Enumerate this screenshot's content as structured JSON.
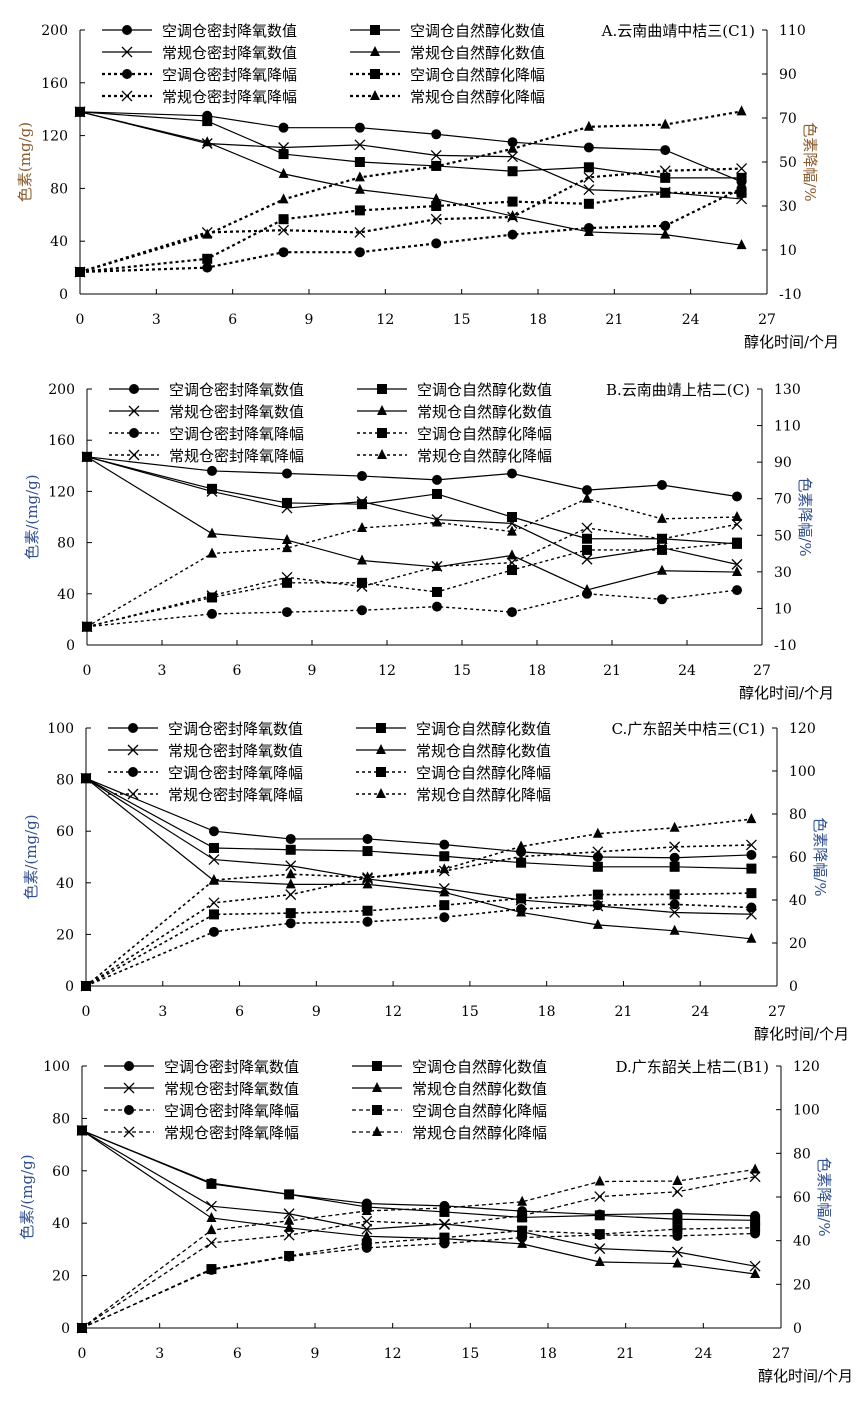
{
  "colors": {
    "line": "#000000",
    "label_a": "#8B5A2B",
    "label_other": "#2F4F8F"
  },
  "chart_data": [
    {
      "type": "line",
      "title": "A.云南曲靖中桔三(C1)",
      "xlabel": "醇化时间/个月",
      "ylabel": "色素(mg/g)",
      "y2label": "色素降幅/%",
      "xlim": [
        0,
        27
      ],
      "xstep": 3,
      "ylim": [
        0,
        200
      ],
      "ystep": 40,
      "y2lim": [
        -10,
        110
      ],
      "y2step": 20,
      "legend": "top-left",
      "x": [
        0,
        5,
        8,
        11,
        14,
        17,
        20,
        23,
        26
      ],
      "series": [
        {
          "name": "空调仓密封降氧数值",
          "axis": "left",
          "marker": "circle",
          "style": "solid",
          "values": [
            138,
            135,
            126,
            126,
            121,
            115,
            111,
            109,
            85
          ]
        },
        {
          "name": "空调仓自然醇化数值",
          "axis": "left",
          "marker": "square",
          "style": "solid",
          "values": [
            138,
            131,
            106,
            100,
            97,
            93,
            96,
            88,
            88
          ]
        },
        {
          "name": "常规仓密封降氧数值",
          "axis": "left",
          "marker": "x",
          "style": "solid",
          "values": [
            138,
            114,
            111,
            113,
            105,
            104,
            79,
            77,
            72
          ]
        },
        {
          "name": "常规仓自然醇化数值",
          "axis": "left",
          "marker": "triangle",
          "style": "solid",
          "values": [
            138,
            115,
            91,
            79,
            72,
            59,
            47,
            45,
            37
          ]
        },
        {
          "name": "空调仓密封降氧降幅",
          "axis": "right",
          "marker": "circle",
          "style": "dotted",
          "values": [
            0,
            2,
            9,
            9,
            13,
            17,
            20,
            21,
            38
          ]
        },
        {
          "name": "空调仓自然醇化降幅",
          "axis": "right",
          "marker": "square",
          "style": "dotted",
          "values": [
            0,
            6,
            24,
            28,
            30,
            32,
            31,
            36,
            36
          ]
        },
        {
          "name": "常规仓密封降氧降幅",
          "axis": "right",
          "marker": "x",
          "style": "dotted",
          "values": [
            0,
            18,
            19,
            18,
            24,
            25,
            43,
            46,
            47
          ]
        },
        {
          "name": "常规仓自然醇化降幅",
          "axis": "right",
          "marker": "triangle",
          "style": "dotted",
          "values": [
            0,
            17,
            33,
            43,
            48,
            56,
            66,
            67,
            73
          ]
        }
      ]
    },
    {
      "type": "line",
      "title": "B.云南曲靖上桔二(C)",
      "xlabel": "醇化时间/个月",
      "ylabel": "色素/(mg/g)",
      "y2label": "色素降幅/%",
      "xlim": [
        0,
        27
      ],
      "xstep": 3,
      "ylim": [
        0,
        200
      ],
      "ystep": 40,
      "y2lim": [
        -10,
        130
      ],
      "y2step": 20,
      "legend": "top-left",
      "x": [
        0,
        5,
        8,
        11,
        14,
        17,
        20,
        23,
        26
      ],
      "series": [
        {
          "name": "空调仓密封降氧数值",
          "axis": "left",
          "marker": "circle",
          "style": "solid",
          "values": [
            147,
            136,
            134,
            132,
            129,
            134,
            121,
            125,
            116
          ]
        },
        {
          "name": "空调仓自然醇化数值",
          "axis": "left",
          "marker": "square",
          "style": "solid",
          "values": [
            147,
            122,
            111,
            110,
            118,
            100,
            83,
            83,
            79
          ]
        },
        {
          "name": "常规仓密封降氧数值",
          "axis": "left",
          "marker": "x",
          "style": "solid",
          "values": [
            147,
            120,
            107,
            112,
            98,
            95,
            67,
            76,
            63
          ]
        },
        {
          "name": "常规仓自然醇化数值",
          "axis": "left",
          "marker": "triangle",
          "style": "solid",
          "values": [
            147,
            87,
            82,
            66,
            61,
            70,
            43,
            58,
            57
          ]
        },
        {
          "name": "空调仓密封降氧降幅",
          "axis": "right",
          "marker": "circle",
          "style": "dotted",
          "values": [
            0,
            7,
            8,
            9,
            11,
            8,
            18,
            15,
            20
          ]
        },
        {
          "name": "空调仓自然醇化降幅",
          "axis": "right",
          "marker": "square",
          "style": "dotted",
          "values": [
            0,
            16,
            24,
            24,
            19,
            31,
            42,
            42,
            46
          ]
        },
        {
          "name": "常规仓密封降氧降幅",
          "axis": "right",
          "marker": "x",
          "style": "dotted",
          "values": [
            0,
            17,
            27,
            22,
            33,
            35,
            54,
            48,
            56
          ]
        },
        {
          "name": "常规仓自然醇化降幅",
          "axis": "right",
          "marker": "triangle",
          "style": "dotted",
          "values": [
            0,
            40,
            43,
            54,
            57,
            52,
            70,
            59,
            60
          ]
        }
      ]
    },
    {
      "type": "line",
      "title": "C.广东韶关中桔三(C1)",
      "xlabel": "醇化时间/个月",
      "ylabel": "色素/(mg/g)",
      "y2label": "色素降幅/%",
      "xlim": [
        0,
        27
      ],
      "xstep": 3,
      "ylim": [
        0,
        100
      ],
      "ystep": 20,
      "y2lim": [
        0,
        120
      ],
      "y2step": 20,
      "legend": "top-left",
      "x": [
        0,
        5,
        8,
        11,
        14,
        17,
        20,
        23,
        26
      ],
      "series": [
        {
          "name": "空调仓密封降氧数值",
          "axis": "left",
          "marker": "circle",
          "style": "solid",
          "values": [
            80.5,
            60,
            57,
            57,
            54.8,
            52,
            50,
            49.7,
            50.8
          ]
        },
        {
          "name": "空调仓自然醇化数值",
          "axis": "left",
          "marker": "square",
          "style": "solid",
          "values": [
            80.5,
            53.5,
            52.8,
            52.3,
            50.3,
            47.8,
            46.2,
            46.2,
            45.5
          ]
        },
        {
          "name": "常规仓密封降氧数值",
          "axis": "left",
          "marker": "x",
          "style": "solid",
          "values": [
            80.5,
            49,
            46.6,
            41.5,
            37.8,
            33.3,
            31,
            28.5,
            27.8
          ]
        },
        {
          "name": "常规仓自然醇化数值",
          "axis": "left",
          "marker": "triangle",
          "style": "solid",
          "values": [
            80.5,
            40.8,
            39.4,
            39.4,
            36.3,
            28.5,
            23.7,
            21.4,
            18.3
          ]
        },
        {
          "name": "空调仓密封降氧降幅",
          "axis": "right",
          "marker": "circle",
          "style": "dotted",
          "values": [
            0,
            25.2,
            29.2,
            29.9,
            32,
            35.8,
            37.6,
            38,
            36.5
          ]
        },
        {
          "name": "空调仓自然醇化降幅",
          "axis": "right",
          "marker": "square",
          "style": "dotted",
          "values": [
            0,
            33.3,
            33.9,
            35,
            37.6,
            40.7,
            42.5,
            42.6,
            43.2
          ]
        },
        {
          "name": "常规仓密封降氧降幅",
          "axis": "right",
          "marker": "x",
          "style": "dotted",
          "values": [
            0,
            38.7,
            42.5,
            50.4,
            53.5,
            60.2,
            62.4,
            64.7,
            65.6
          ]
        },
        {
          "name": "常规仓自然醇化降幅",
          "axis": "right",
          "marker": "triangle",
          "style": "dotted",
          "values": [
            0,
            49.3,
            52,
            50.5,
            54.3,
            64.9,
            70.8,
            73.6,
            77.6
          ]
        }
      ]
    },
    {
      "type": "line",
      "title": "D.广东韶关上桔二(B1)",
      "xlabel": "醇化时间/个月",
      "ylabel": "色素/(mg/g)",
      "y2label": "色素降幅/%",
      "xlim": [
        0,
        27
      ],
      "xstep": 3,
      "ylim": [
        0,
        100
      ],
      "ystep": 20,
      "y2lim": [
        0,
        120
      ],
      "y2step": 20,
      "legend": "top-left",
      "x": [
        0,
        5,
        8,
        11,
        14,
        17,
        20,
        23,
        26
      ],
      "series": [
        {
          "name": "空调仓密封降氧数值",
          "axis": "left",
          "marker": "circle",
          "style": "solid",
          "values": [
            75.4,
            55.3,
            51,
            47.5,
            46.6,
            44.6,
            43.3,
            43.7,
            42.8
          ]
        },
        {
          "name": "空调仓自然醇化数值",
          "axis": "left",
          "marker": "square",
          "style": "solid",
          "values": [
            75.4,
            55,
            51,
            46.2,
            44.3,
            42.2,
            43,
            41.5,
            41.1
          ]
        },
        {
          "name": "常规仓密封降氧数值",
          "axis": "left",
          "marker": "x",
          "style": "solid",
          "values": [
            75.4,
            46.5,
            43.6,
            37.7,
            39.7,
            36.7,
            30.3,
            29,
            23.6
          ]
        },
        {
          "name": "常规仓自然醇化数值",
          "axis": "left",
          "marker": "triangle",
          "style": "solid",
          "values": [
            75.4,
            42,
            38.2,
            35,
            34.1,
            32.1,
            25.2,
            24.6,
            20.6
          ]
        },
        {
          "name": "空调仓密封降氧降幅",
          "axis": "right",
          "marker": "circle",
          "style": "dotted",
          "values": [
            0,
            26.6,
            32.7,
            36.7,
            38.7,
            41.4,
            42.6,
            42.2,
            43.3
          ]
        },
        {
          "name": "空调仓自然醇化降幅",
          "axis": "right",
          "marker": "square",
          "style": "dotted",
          "values": [
            0,
            27,
            33,
            38.7,
            41.4,
            44.6,
            43,
            45.3,
            45.9
          ]
        },
        {
          "name": "常规仓密封降氧降幅",
          "axis": "right",
          "marker": "x",
          "style": "dotted",
          "values": [
            0,
            39,
            42.5,
            48.9,
            47.4,
            51.4,
            60.2,
            62.4,
            69.3
          ]
        },
        {
          "name": "常规仓自然醇化降幅",
          "axis": "right",
          "marker": "triangle",
          "style": "dotted",
          "values": [
            0,
            44.8,
            49.1,
            53.6,
            55,
            57.8,
            67.1,
            67.3,
            72.6
          ]
        }
      ]
    }
  ]
}
